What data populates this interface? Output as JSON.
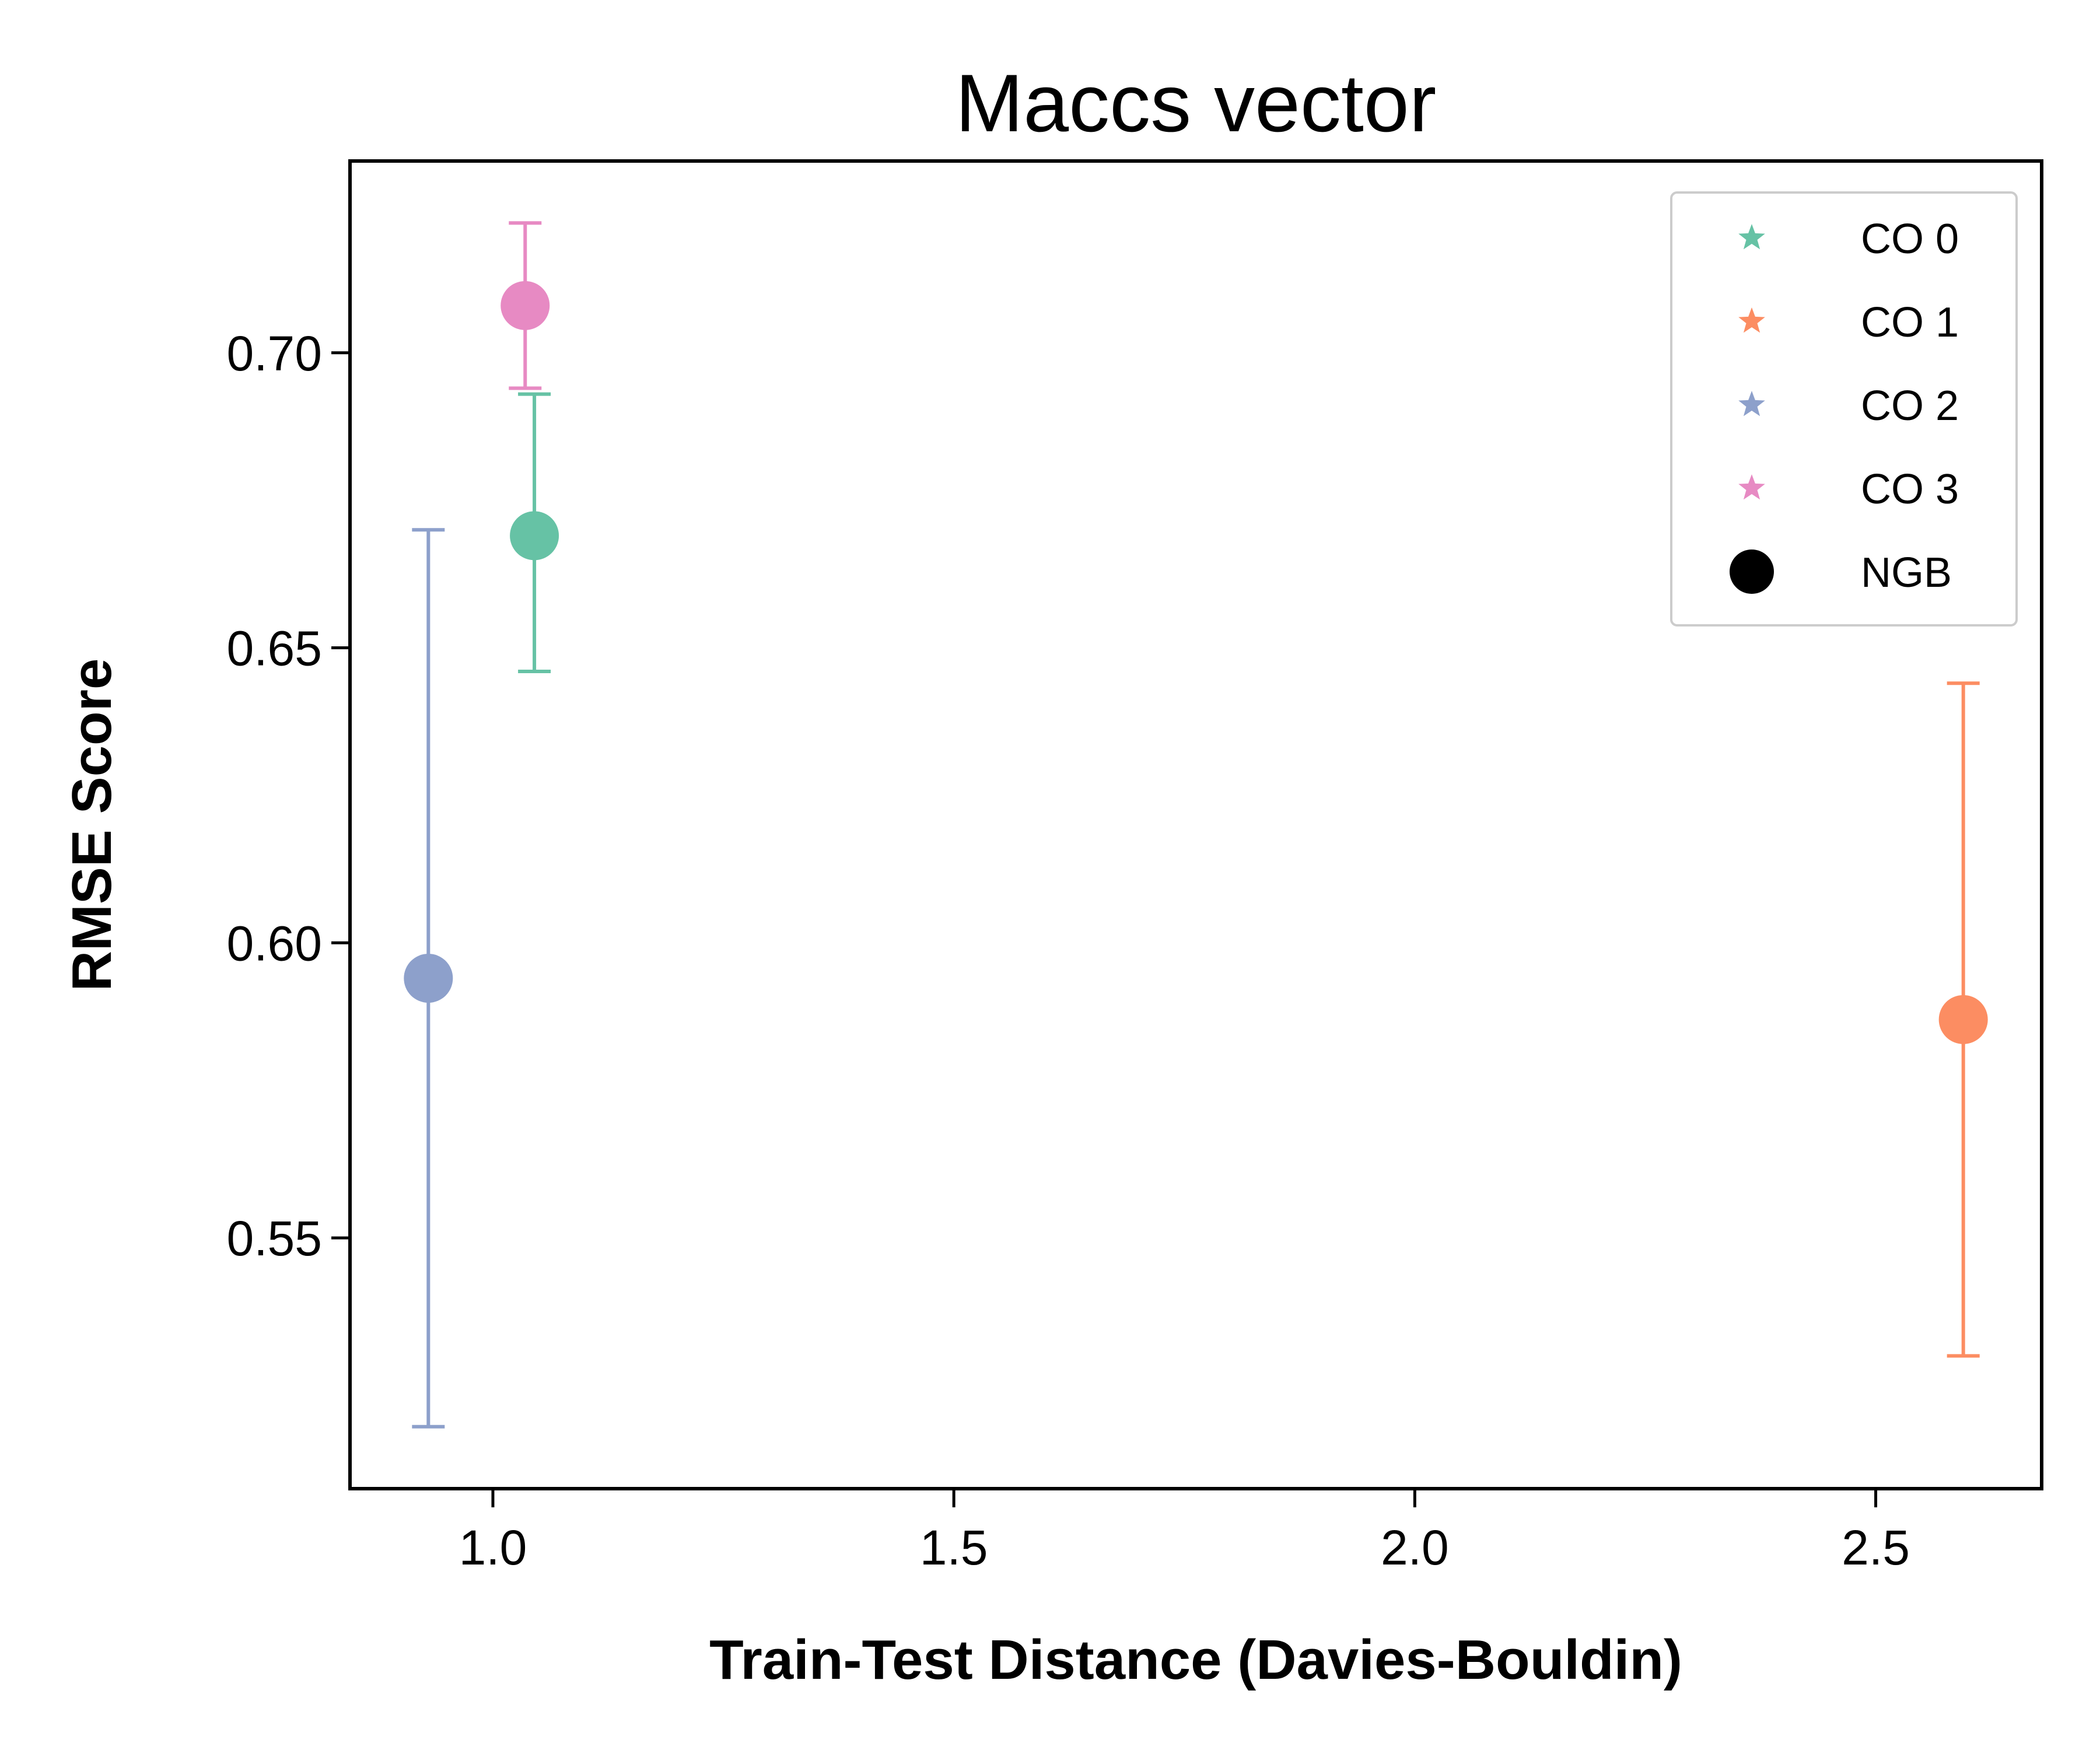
{
  "chart_data": {
    "type": "scatter",
    "title": "Maccs vector",
    "xlabel": "Train-Test Distance (Davies-Bouldin)",
    "ylabel": "RMSE Score",
    "xlim": [
      0.845,
      2.68
    ],
    "ylim": [
      0.5075,
      0.7325
    ],
    "xticks": [
      1.0,
      1.5,
      2.0,
      2.5
    ],
    "xtick_labels": [
      "1.0",
      "1.5",
      "2.0",
      "2.5"
    ],
    "yticks": [
      0.55,
      0.6,
      0.65,
      0.7
    ],
    "ytick_labels": [
      "0.55",
      "0.60",
      "0.65",
      "0.70"
    ],
    "grid": false,
    "legend_position": "top-right",
    "series": [
      {
        "name": "CO 0",
        "color": "#66c2a5",
        "x": 1.045,
        "y": 0.669,
        "err_low": 0.646,
        "err_high": 0.693
      },
      {
        "name": "CO 1",
        "color": "#fc8d62",
        "x": 2.595,
        "y": 0.587,
        "err_low": 0.53,
        "err_high": 0.644
      },
      {
        "name": "CO 2",
        "color": "#8da0cb",
        "x": 0.93,
        "y": 0.594,
        "err_low": 0.518,
        "err_high": 0.67
      },
      {
        "name": "CO 3",
        "color": "#e78ac3",
        "x": 1.035,
        "y": 0.708,
        "err_low": 0.694,
        "err_high": 0.722
      }
    ],
    "legend": [
      {
        "label": "CO 0",
        "marker": "star",
        "color": "#66c2a5"
      },
      {
        "label": "CO 1",
        "marker": "star",
        "color": "#fc8d62"
      },
      {
        "label": "CO 2",
        "marker": "star",
        "color": "#8da0cb"
      },
      {
        "label": "CO 3",
        "marker": "star",
        "color": "#e78ac3"
      },
      {
        "label": "NGB",
        "marker": "circle",
        "color": "#000000"
      }
    ]
  }
}
